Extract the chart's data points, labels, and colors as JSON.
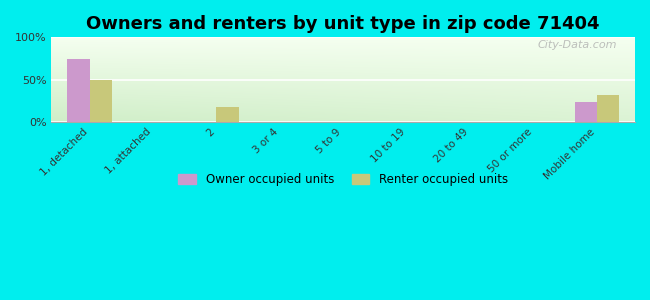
{
  "title": "Owners and renters by unit type in zip code 71404",
  "categories": [
    "1, detached",
    "1, attached",
    "2",
    "3 or 4",
    "5 to 9",
    "10 to 19",
    "20 to 49",
    "50 or more",
    "Mobile home"
  ],
  "owner_values": [
    74,
    0,
    0,
    0,
    0,
    0,
    0,
    0,
    24
  ],
  "renter_values": [
    50,
    0,
    18,
    0,
    0,
    0,
    0,
    0,
    32
  ],
  "owner_color": "#cc99cc",
  "renter_color": "#c8c87a",
  "bg_color": "#00eeee",
  "ylabel_ticks": [
    "0%",
    "50%",
    "100%"
  ],
  "yticks": [
    0,
    50,
    100
  ],
  "ylim": [
    0,
    100
  ],
  "bar_width": 0.35,
  "title_fontsize": 13,
  "legend_labels": [
    "Owner occupied units",
    "Renter occupied units"
  ],
  "watermark": "City-Data.com",
  "gradient_colors": [
    "#d8efd0",
    "#f2faf0"
  ],
  "grid_color": "#ffffff"
}
